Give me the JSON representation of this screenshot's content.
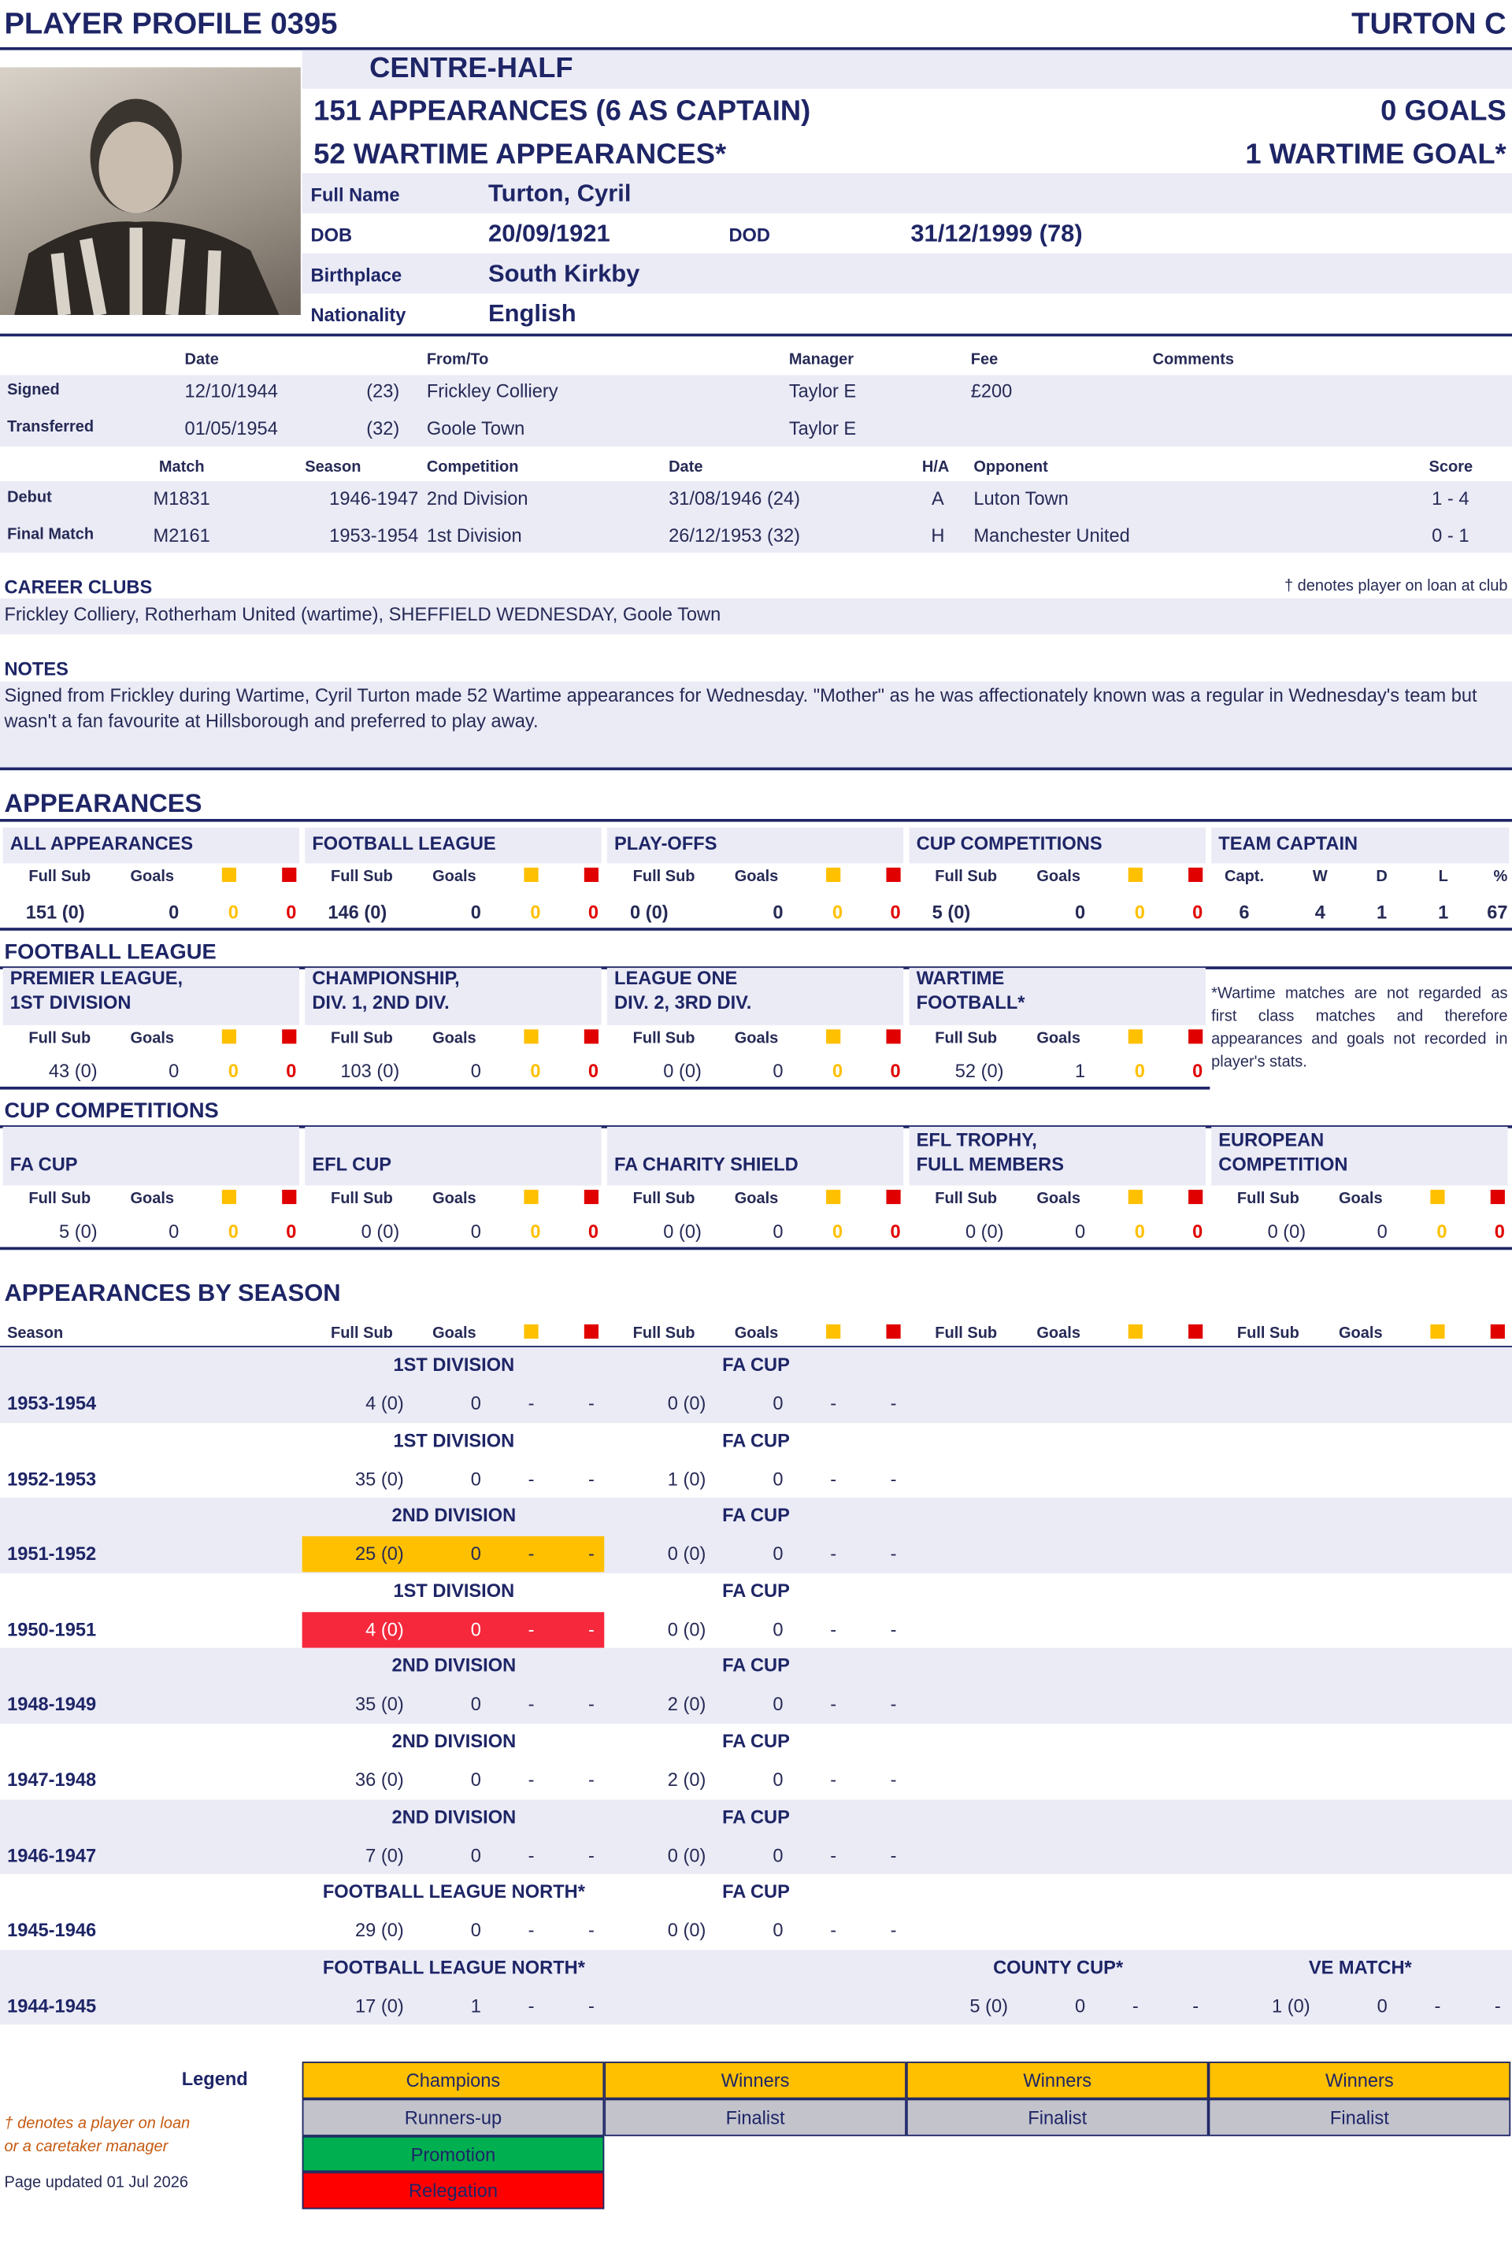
{
  "header": {
    "title": "PLAYER PROFILE 0395",
    "name": "TURTON C",
    "position": "CENTRE-HALF",
    "appearances": "151 APPEARANCES (6 AS CAPTAIN)",
    "goals": "0 GOALS",
    "wartime_appearances": "52 WARTIME APPEARANCES*",
    "wartime_goals": "1 WARTIME  GOAL*"
  },
  "details": {
    "full_name": {
      "label": "Full Name",
      "value": "Turton, Cyril"
    },
    "dob": {
      "label": "DOB",
      "value": "20/09/1921"
    },
    "dod": {
      "label": "DOD",
      "value": "31/12/1999  (78)"
    },
    "birthplace": {
      "label": "Birthplace",
      "value": "South Kirkby"
    },
    "nationality": {
      "label": "Nationality",
      "value": "English"
    }
  },
  "transfers": {
    "headers": {
      "date": "Date",
      "club": "From/To",
      "manager": "Manager",
      "fee": "Fee",
      "comments": "Comments"
    },
    "rows": [
      {
        "label": "Signed",
        "date": "12/10/1944",
        "age": "(23)",
        "club": "Frickley Colliery",
        "manager": "Taylor E",
        "fee": "£200"
      },
      {
        "label": "Transferred",
        "date": "01/05/1954",
        "age": "(32)",
        "club": "Goole Town",
        "manager": "Taylor E"
      }
    ]
  },
  "matches": {
    "headers": {
      "match": "Match",
      "season": "Season",
      "competition": "Competition",
      "date": "Date",
      "venue": "H/A",
      "opponent": "Opponent",
      "score": "Score"
    },
    "rows": [
      {
        "label": "Debut",
        "match": "M1831",
        "season": "1946-1947",
        "competition": "2nd Division",
        "date": "31/08/1946  (24)",
        "venue": "A",
        "opponent": "Luton Town",
        "score": "1 - 4"
      },
      {
        "label": "Final Match",
        "match": "M2161",
        "season": "1953-1954",
        "competition": "1st Division",
        "date": "26/12/1953  (32)",
        "venue": "H",
        "opponent": "Manchester United",
        "score": "0 - 1"
      }
    ]
  },
  "career_clubs": {
    "title": "CAREER CLUBS",
    "loan_note": "† denotes player on loan at club",
    "text": "Frickley Colliery, Rotherham United (wartime), SHEFFIELD WEDNESDAY, Goole Town"
  },
  "notes": {
    "title": "NOTES",
    "text": "Signed from Frickley during Wartime, Cyril Turton made 52 Wartime appearances for Wednesday.  \"Mother\" as he was affectionately known was a regular in Wednesday's team but wasn't a fan favourite at Hillsborough and preferred to play away."
  },
  "columns": {
    "full_sub": "Full Sub",
    "goals": "Goals"
  },
  "appearances": {
    "title": "APPEARANCES",
    "blocks": [
      {
        "title": [
          "ALL APPEARANCES"
        ],
        "apps": "151 (0)",
        "goals": 0,
        "yellow": 0,
        "red": 0
      },
      {
        "title": [
          "FOOTBALL LEAGUE"
        ],
        "apps": "146 (0)",
        "goals": 0,
        "yellow": 0,
        "red": 0
      },
      {
        "title": [
          "PLAY-OFFS"
        ],
        "apps": "0 (0)",
        "goals": 0,
        "yellow": 0,
        "red": 0
      },
      {
        "title": [
          "CUP COMPETITIONS"
        ],
        "apps": "5 (0)",
        "goals": 0,
        "yellow": 0,
        "red": 0
      }
    ],
    "captain": {
      "title": "TEAM CAPTAIN",
      "headers": [
        "Capt.",
        "W",
        "D",
        "L",
        "%"
      ],
      "values": [
        6,
        4,
        1,
        1,
        67
      ]
    }
  },
  "football_league": {
    "title": "FOOTBALL LEAGUE",
    "blocks": [
      {
        "title": [
          "PREMIER LEAGUE,",
          "1ST DIVISION"
        ],
        "apps": "43 (0)",
        "goals": 0,
        "yellow": 0,
        "red": 0
      },
      {
        "title": [
          "CHAMPIONSHIP,",
          "DIV. 1, 2ND DIV."
        ],
        "apps": "103 (0)",
        "goals": 0,
        "yellow": 0,
        "red": 0
      },
      {
        "title": [
          "LEAGUE ONE",
          "DIV. 2, 3RD DIV."
        ],
        "apps": "0 (0)",
        "goals": 0,
        "yellow": 0,
        "red": 0
      },
      {
        "title": [
          "WARTIME",
          "FOOTBALL*"
        ],
        "apps": "52 (0)",
        "goals": 1,
        "yellow": 0,
        "red": 0
      }
    ],
    "note": "*Wartime matches are not regarded as first class matches and therefore appearances and goals not recorded in player's stats."
  },
  "cup_competitions": {
    "title": "CUP COMPETITIONS",
    "blocks": [
      {
        "title": [
          "FA CUP"
        ],
        "apps": "5 (0)",
        "goals": 0,
        "yellow": 0,
        "red": 0
      },
      {
        "title": [
          "EFL CUP"
        ],
        "apps": "0 (0)",
        "goals": 0,
        "yellow": 0,
        "red": 0
      },
      {
        "title": [
          "FA CHARITY SHIELD"
        ],
        "apps": "0 (0)",
        "goals": 0,
        "yellow": 0,
        "red": 0
      },
      {
        "title": [
          "EFL TROPHY,",
          "FULL MEMBERS"
        ],
        "apps": "0 (0)",
        "goals": 0,
        "yellow": 0,
        "red": 0
      },
      {
        "title": [
          "EUROPEAN",
          "COMPETITION"
        ],
        "apps": "0 (0)",
        "goals": 0,
        "yellow": 0,
        "red": 0
      }
    ]
  },
  "by_season": {
    "title": "APPEARANCES BY SEASON",
    "season_header": "Season",
    "rows": [
      {
        "season": "1953-1954",
        "cells": [
          {
            "competition": "1ST DIVISION",
            "apps": "4 (0)",
            "goals": 0,
            "yellow": "-",
            "red": "-"
          },
          {
            "competition": "FA CUP",
            "apps": "0 (0)",
            "goals": 0,
            "yellow": "-",
            "red": "-"
          }
        ]
      },
      {
        "season": "1952-1953",
        "cells": [
          {
            "competition": "1ST DIVISION",
            "apps": "35 (0)",
            "goals": 0,
            "yellow": "-",
            "red": "-"
          },
          {
            "competition": "FA CUP",
            "apps": "1 (0)",
            "goals": 0,
            "yellow": "-",
            "red": "-"
          }
        ]
      },
      {
        "season": "1951-1952",
        "cells": [
          {
            "competition": "2ND DIVISION",
            "apps": "25 (0)",
            "goals": 0,
            "yellow": "-",
            "red": "-",
            "color": "#ffc000"
          },
          {
            "competition": "FA CUP",
            "apps": "0 (0)",
            "goals": 0,
            "yellow": "-",
            "red": "-"
          }
        ]
      },
      {
        "season": "1950-1951",
        "cells": [
          {
            "competition": "1ST DIVISION",
            "apps": "4 (0)",
            "goals": 0,
            "yellow": "-",
            "red": "-",
            "color": "#f5283c"
          },
          {
            "competition": "FA CUP",
            "apps": "0 (0)",
            "goals": 0,
            "yellow": "-",
            "red": "-"
          }
        ]
      },
      {
        "season": "1948-1949",
        "cells": [
          {
            "competition": "2ND DIVISION",
            "apps": "35 (0)",
            "goals": 0,
            "yellow": "-",
            "red": "-"
          },
          {
            "competition": "FA CUP",
            "apps": "2 (0)",
            "goals": 0,
            "yellow": "-",
            "red": "-"
          }
        ]
      },
      {
        "season": "1947-1948",
        "cells": [
          {
            "competition": "2ND DIVISION",
            "apps": "36 (0)",
            "goals": 0,
            "yellow": "-",
            "red": "-"
          },
          {
            "competition": "FA CUP",
            "apps": "2 (0)",
            "goals": 0,
            "yellow": "-",
            "red": "-"
          }
        ]
      },
      {
        "season": "1946-1947",
        "cells": [
          {
            "competition": "2ND DIVISION",
            "apps": "7 (0)",
            "goals": 0,
            "yellow": "-",
            "red": "-"
          },
          {
            "competition": "FA CUP",
            "apps": "0 (0)",
            "goals": 0,
            "yellow": "-",
            "red": "-"
          }
        ]
      },
      {
        "season": "1945-1946",
        "cells": [
          {
            "competition": "FOOTBALL LEAGUE NORTH*",
            "apps": "29 (0)",
            "goals": 0,
            "yellow": "-",
            "red": "-"
          },
          {
            "competition": "FA CUP",
            "apps": "0 (0)",
            "goals": 0,
            "yellow": "-",
            "red": "-"
          }
        ]
      },
      {
        "season": "1944-1945",
        "cells": [
          {
            "competition": "FOOTBALL LEAGUE NORTH*",
            "apps": "17 (0)",
            "goals": 1,
            "yellow": "-",
            "red": "-"
          },
          null,
          {
            "competition": "COUNTY CUP*",
            "apps": "5 (0)",
            "goals": 0,
            "yellow": "-",
            "red": "-"
          },
          {
            "competition": "VE MATCH*",
            "apps": "1 (0)",
            "goals": 0,
            "yellow": "-",
            "red": "-"
          }
        ]
      }
    ]
  },
  "legend": {
    "title": "Legend",
    "rows": [
      [
        {
          "text": "Champions",
          "color": "#ffc000"
        },
        {
          "text": "Winners",
          "color": "#ffc000"
        },
        {
          "text": "Winners",
          "color": "#ffc000"
        },
        {
          "text": "Winners",
          "color": "#ffc000"
        }
      ],
      [
        {
          "text": "Runners-up",
          "color": "#c3c3cc"
        },
        {
          "text": "Finalist",
          "color": "#c3c3cc"
        },
        {
          "text": "Finalist",
          "color": "#c3c3cc"
        },
        {
          "text": "Finalist",
          "color": "#c3c3cc"
        }
      ],
      [
        {
          "text": "Promotion",
          "color": "#00b050"
        }
      ],
      [
        {
          "text": "Relegation",
          "color": "#ff0000"
        }
      ]
    ],
    "loan_note": [
      "† denotes a player on loan",
      " or a caretaker manager"
    ],
    "updated": "Page updated 01 Jul 2026"
  }
}
